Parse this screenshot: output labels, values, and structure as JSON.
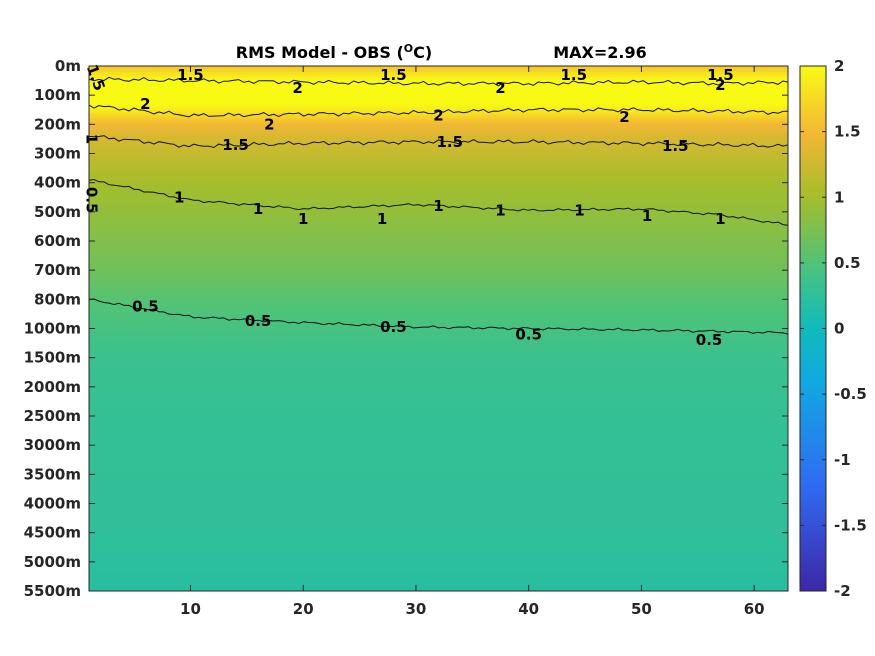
{
  "chart_data": {
    "type": "heatmap",
    "title": "RMS Model - OBS (°C)",
    "title_parts": {
      "prefix": "RMS Model - OBS (",
      "superscript": "O",
      "suffix": "C)"
    },
    "max_label": "MAX=2.96",
    "xlabel": "",
    "ylabel": "",
    "xlim": [
      1,
      63
    ],
    "x_ticks": [
      10,
      20,
      30,
      40,
      50,
      60
    ],
    "y_ticks": [
      "0m",
      "100m",
      "200m",
      "300m",
      "400m",
      "500m",
      "600m",
      "700m",
      "800m",
      "1000m",
      "1500m",
      "2000m",
      "2500m",
      "3000m",
      "3500m",
      "4000m",
      "4500m",
      "5000m",
      "5500m"
    ],
    "colorbar": {
      "min": -2,
      "max": 2,
      "ticks": [
        "2",
        "1.5",
        "1",
        "0.5",
        "0",
        "-0.5",
        "-1",
        "-1.5",
        "-2"
      ]
    },
    "colormap": "parula",
    "depth_profile": {
      "depth_index": [
        0,
        0.5,
        1,
        1.5,
        2,
        2.5,
        3,
        4,
        5,
        6,
        7,
        8,
        9,
        10,
        12,
        14,
        16,
        18
      ],
      "value": [
        1.6,
        2.0,
        2.1,
        1.9,
        1.5,
        1.3,
        1.2,
        1.0,
        0.9,
        0.8,
        0.7,
        0.55,
        0.45,
        0.35,
        0.3,
        0.28,
        0.26,
        0.2
      ]
    },
    "contours": [
      {
        "level": "2",
        "depth_index": [
          0.45,
          0.5,
          0.55,
          0.6,
          0.6,
          0.55,
          0.6,
          0.55
        ]
      },
      {
        "level": "2",
        "depth_index": [
          1.35,
          1.7,
          1.65,
          1.6,
          1.5,
          1.5,
          1.55,
          1.6
        ]
      },
      {
        "level": "1.5",
        "depth_index": [
          2.4,
          2.75,
          2.65,
          2.6,
          2.6,
          2.65,
          2.7,
          2.75
        ]
      },
      {
        "level": "1",
        "depth_index": [
          3.9,
          4.6,
          4.9,
          4.75,
          4.95,
          4.9,
          5.1,
          5.45
        ]
      },
      {
        "level": "0.5",
        "depth_index": [
          8.0,
          8.6,
          8.8,
          8.95,
          9.0,
          9.05,
          9.1,
          9.15
        ]
      }
    ],
    "contour_x": [
      1,
      10,
      20,
      30,
      40,
      50,
      57,
      63
    ],
    "contour_labels": [
      {
        "text": "1.5",
        "x": 10,
        "d": 0.3
      },
      {
        "text": "2",
        "x": 19.5,
        "d": 0.75
      },
      {
        "text": "1.5",
        "x": 28,
        "d": 0.3
      },
      {
        "text": "2",
        "x": 37.5,
        "d": 0.75
      },
      {
        "text": "1.5",
        "x": 44,
        "d": 0.3
      },
      {
        "text": "2",
        "x": 57,
        "d": 0.65
      },
      {
        "text": "1.5",
        "x": 57,
        "d": 0.3
      },
      {
        "text": "2",
        "x": 6,
        "d": 1.3
      },
      {
        "text": "2",
        "x": 17,
        "d": 2.0
      },
      {
        "text": "2",
        "x": 32,
        "d": 1.7
      },
      {
        "text": "2",
        "x": 48.5,
        "d": 1.75
      },
      {
        "text": "1.5",
        "x": 14,
        "d": 2.7
      },
      {
        "text": "1.5",
        "x": 33,
        "d": 2.6
      },
      {
        "text": "1.5",
        "x": 53,
        "d": 2.75
      },
      {
        "text": "1",
        "x": 9,
        "d": 4.5
      },
      {
        "text": "1",
        "x": 16,
        "d": 4.9
      },
      {
        "text": "1",
        "x": 20,
        "d": 5.25
      },
      {
        "text": "1",
        "x": 27,
        "d": 5.25
      },
      {
        "text": "1",
        "x": 32,
        "d": 4.8
      },
      {
        "text": "1",
        "x": 37.5,
        "d": 4.95
      },
      {
        "text": "1",
        "x": 44.5,
        "d": 4.95
      },
      {
        "text": "1",
        "x": 50.5,
        "d": 5.15
      },
      {
        "text": "1",
        "x": 57,
        "d": 5.25
      },
      {
        "text": "0.5",
        "x": 6,
        "d": 8.25
      },
      {
        "text": "0.5",
        "x": 16,
        "d": 8.75
      },
      {
        "text": "0.5",
        "x": 28,
        "d": 8.95
      },
      {
        "text": "0.5",
        "x": 40,
        "d": 9.2
      },
      {
        "text": "0.5",
        "x": 56,
        "d": 9.4
      },
      {
        "text": "1.5",
        "x": 1.6,
        "d": 0.4,
        "rotate": 70
      },
      {
        "text": "1",
        "x": 1.2,
        "d": 2.5,
        "rotate": 90
      },
      {
        "text": "0.5",
        "x": 1.2,
        "d": 4.6,
        "rotate": 90
      }
    ]
  }
}
